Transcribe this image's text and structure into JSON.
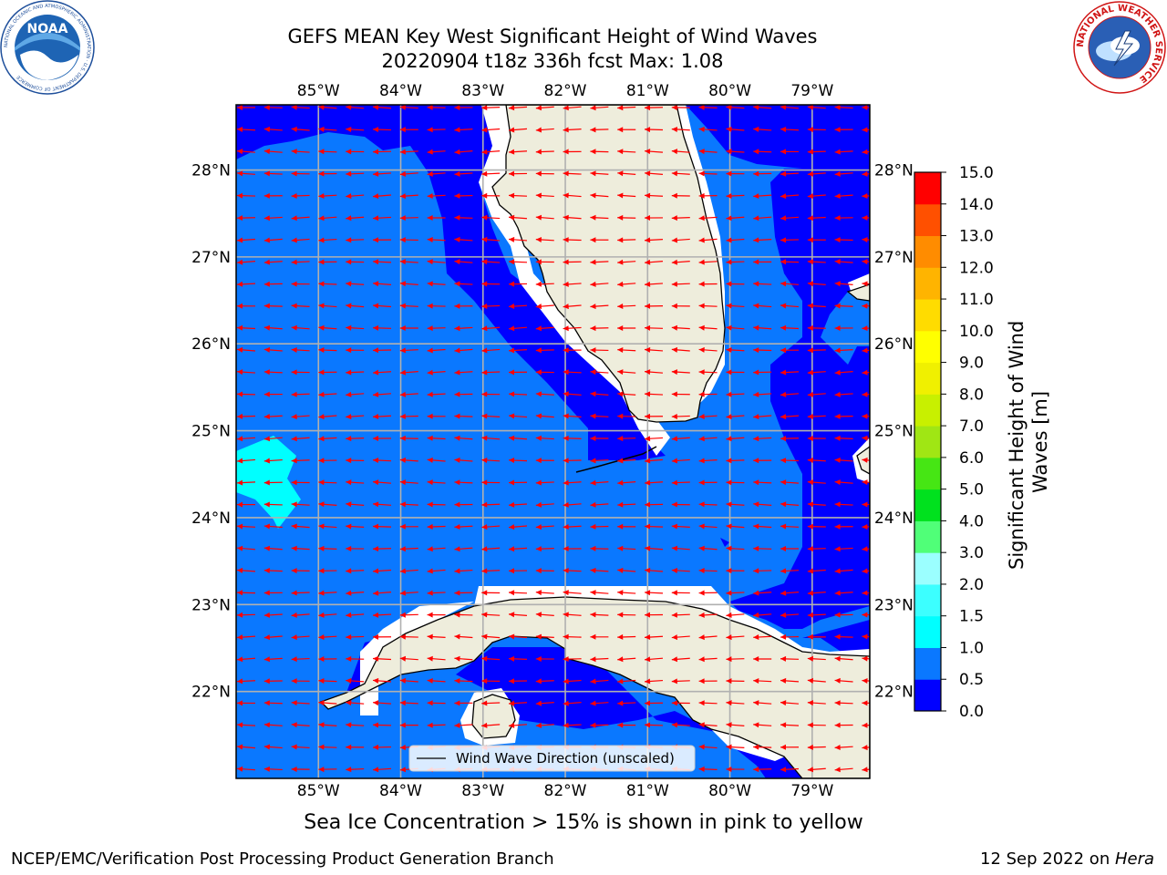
{
  "title": {
    "line1": "GEFS MEAN Key West Significant Height of Wind Waves",
    "line2": "20220904 t18z 336h fcst   Max: 1.08"
  },
  "logos": {
    "left": {
      "name": "noaa-logo",
      "text": "NOAA",
      "ring_text": "NATIONAL OCEANIC AND ATMOSPHERIC ADMINISTRATION · U.S. DEPARTMENT OF COMMERCE"
    },
    "right": {
      "name": "nws-logo",
      "ring_text": "NATIONAL WEATHER SERVICE"
    }
  },
  "map": {
    "lon_ticks": [
      "85°W",
      "84°W",
      "83°W",
      "82°W",
      "81°W",
      "80°W",
      "79°W"
    ],
    "lat_ticks": [
      "28°N",
      "27°N",
      "26°N",
      "25°N",
      "24°N",
      "23°N",
      "22°N"
    ],
    "lon_values": [
      -85,
      -84,
      -83,
      -82,
      -81,
      -80,
      -79
    ],
    "lat_values": [
      28,
      27,
      26,
      25,
      24,
      23,
      22
    ],
    "lon_range": [
      -86.0,
      -78.3
    ],
    "lat_range": [
      21.0,
      28.75
    ],
    "arrow_color": "#ff0000",
    "land_color": "#eeeddc",
    "grid_color": "#b0b0b0",
    "legend_label": "Wind Wave Direction (unscaled)"
  },
  "colorbar": {
    "title": "Significant Height of Wind Waves [m]",
    "title_line1": "Significant Height of Wind",
    "title_line2": "Waves [m]",
    "levels": [
      "0.0",
      "0.5",
      "1.0",
      "1.5",
      "2.0",
      "3.0",
      "4.0",
      "5.0",
      "6.0",
      "7.0",
      "8.0",
      "9.0",
      "10.0",
      "11.0",
      "12.0",
      "13.0",
      "14.0",
      "15.0"
    ],
    "colors": [
      "#0000ff",
      "#0a78ff",
      "#00ffff",
      "#3cffff",
      "#9bffff",
      "#50ff78",
      "#00e11e",
      "#46e614",
      "#a0e614",
      "#c8f000",
      "#f0f000",
      "#ffff00",
      "#ffdc00",
      "#ffb400",
      "#ff8c00",
      "#ff5000",
      "#ff0000"
    ]
  },
  "footer": {
    "sea_ice_note": "Sea Ice Concentration > 15% is shown in pink to yellow",
    "credit": "NCEP/EMC/Verification Post Processing Product Generation Branch",
    "date": "12 Sep 2022 on ",
    "machine": "Hera"
  }
}
